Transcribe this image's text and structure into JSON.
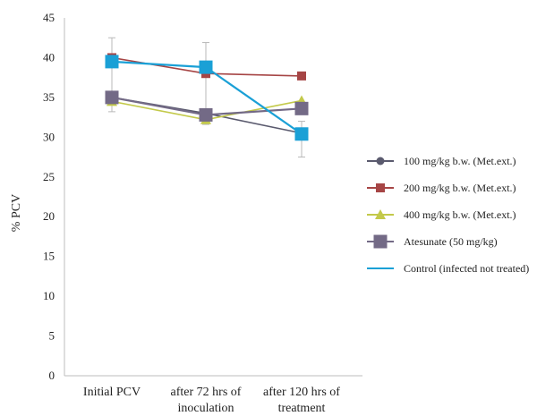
{
  "chart_data": {
    "type": "line",
    "ylabel": "% PCV",
    "xlabel": "",
    "ylim": [
      0,
      45
    ],
    "yticks": [
      0,
      5,
      10,
      15,
      20,
      25,
      30,
      35,
      40,
      45
    ],
    "grid": false,
    "legend_position": "right",
    "categories": [
      [
        "Initial PCV"
      ],
      [
        "after 72 hrs of",
        "inoculation"
      ],
      [
        "after 120 hrs of",
        "treatment"
      ]
    ],
    "series": [
      {
        "name": "100 mg/kg b.w. (Met.ext.)",
        "values": [
          35.0,
          33.0,
          30.5
        ],
        "color": "#5a5a6e",
        "marker": "circle"
      },
      {
        "name": "200 mg/kg b.w. (Met.ext.)",
        "values": [
          40.0,
          38.0,
          37.7
        ],
        "color": "#a64545",
        "marker": "square"
      },
      {
        "name": "400 mg/kg b.w. (Met.ext.)",
        "values": [
          34.5,
          32.2,
          34.6
        ],
        "color": "#c3c94a",
        "marker": "triangle"
      },
      {
        "name": "Atesunate (50 mg/kg)",
        "values": [
          35.0,
          32.8,
          33.6
        ],
        "color": "#736a86",
        "marker": "square-large"
      },
      {
        "name": "Control (infected not treated)",
        "values": [
          39.5,
          38.8,
          30.4
        ],
        "color": "#1aa0d6",
        "marker": "square-large"
      }
    ],
    "error_bars": [
      {
        "category": 0,
        "low": 33.2,
        "high": 42.5
      },
      {
        "category": 1,
        "low": 31.6,
        "high": 41.9
      },
      {
        "category": 2,
        "low": 27.5,
        "high": 32.0
      }
    ]
  }
}
